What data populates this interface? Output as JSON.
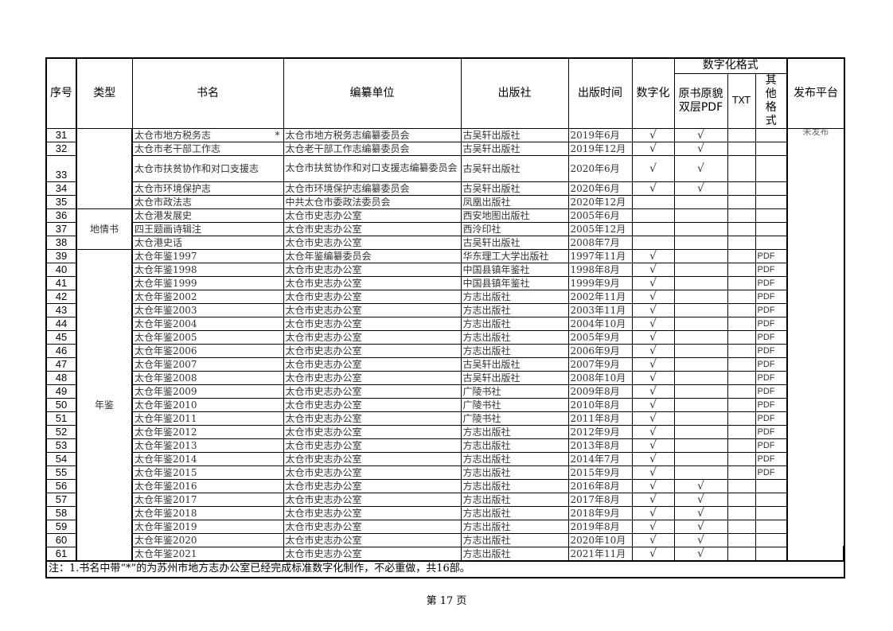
{
  "headers": {
    "no": "序号",
    "type": "类型",
    "title": "书名",
    "compiler": "编纂单位",
    "publisher": "出版社",
    "date": "出版时间",
    "digitized": "数字化",
    "format_group": "数字化格式",
    "format_pdf": "原书原貌双层PDF",
    "format_txt": "TXT",
    "format_other": "其他格式",
    "platform": "发布平台"
  },
  "platform_value": "未发布",
  "check_mark": "√",
  "type_groups": [
    {
      "label": "",
      "rows": 5
    },
    {
      "label": "地情书",
      "rows": 3
    },
    {
      "label": "年鉴",
      "rows": 23
    }
  ],
  "rows": [
    {
      "no": "31",
      "title": "太仓市地方税务志",
      "star": "*",
      "compiler": "太仓市地方税务志编纂委员会",
      "publisher": "古吴轩出版社",
      "date": "2019年6月",
      "digitized": "√",
      "pdf": "√",
      "txt": "",
      "other": ""
    },
    {
      "no": "32",
      "title": "太仓市老干部工作志",
      "star": "",
      "compiler": "太仓老干部工作志编纂委员会",
      "publisher": "古吴轩出版社",
      "date": "2019年12月",
      "digitized": "√",
      "pdf": "√",
      "txt": "",
      "other": ""
    },
    {
      "no": "33",
      "title": "太仓市扶贫协作和对口支援志",
      "star": "",
      "compiler": "太仓市扶贫协作和对口支援志编纂委员会",
      "publisher": "古吴轩出版社",
      "date": "2020年6月",
      "digitized": "√",
      "pdf": "√",
      "txt": "",
      "other": ""
    },
    {
      "no": "34",
      "title": "太仓市环境保护志",
      "star": "",
      "compiler": "太仓市环境保护志编纂委员会",
      "publisher": "古吴轩出版社",
      "date": "2020年6月",
      "digitized": "√",
      "pdf": "√",
      "txt": "",
      "other": ""
    },
    {
      "no": "35",
      "title": "太仓市政法志",
      "star": "",
      "compiler": "中共太仓市委政法委员会",
      "publisher": "凤凰出版社",
      "date": "2020年12月",
      "digitized": "",
      "pdf": "",
      "txt": "",
      "other": ""
    },
    {
      "no": "36",
      "title": "太仓港发展史",
      "star": "",
      "compiler": "太仓市史志办公室",
      "publisher": "西安地图出版社",
      "date": "2005年6月",
      "digitized": "",
      "pdf": "",
      "txt": "",
      "other": ""
    },
    {
      "no": "37",
      "title": "四王题画诗辑注",
      "star": "",
      "compiler": "太仓市史志办公室",
      "publisher": "西泠印社",
      "date": "2005年12月",
      "digitized": "",
      "pdf": "",
      "txt": "",
      "other": ""
    },
    {
      "no": "38",
      "title": "太仓港史话",
      "star": "",
      "compiler": "太仓市史志办公室",
      "publisher": "古吴轩出版社",
      "date": "2008年7月",
      "digitized": "",
      "pdf": "",
      "txt": "",
      "other": ""
    },
    {
      "no": "39",
      "title": "太仓年鉴1997",
      "star": "",
      "compiler": "太仓年鉴编纂委员会",
      "publisher": "华东理工大学出版社",
      "date": "1997年11月",
      "digitized": "√",
      "pdf": "",
      "txt": "",
      "other": "PDF"
    },
    {
      "no": "40",
      "title": "太仓年鉴1998",
      "star": "",
      "compiler": "太仓市史志办公室",
      "publisher": "中国县镇年鉴社",
      "date": "1998年8月",
      "digitized": "√",
      "pdf": "",
      "txt": "",
      "other": "PDF"
    },
    {
      "no": "41",
      "title": "太仓年鉴1999",
      "star": "",
      "compiler": "太仓市史志办公室",
      "publisher": "中国县镇年鉴社",
      "date": "1999年9月",
      "digitized": "√",
      "pdf": "",
      "txt": "",
      "other": "PDF"
    },
    {
      "no": "42",
      "title": "太仓年鉴2002",
      "star": "",
      "compiler": "太仓市史志办公室",
      "publisher": "方志出版社",
      "date": "2002年11月",
      "digitized": "√",
      "pdf": "",
      "txt": "",
      "other": "PDF"
    },
    {
      "no": "43",
      "title": "太仓年鉴2003",
      "star": "",
      "compiler": "太仓市史志办公室",
      "publisher": "方志出版社",
      "date": "2003年11月",
      "digitized": "√",
      "pdf": "",
      "txt": "",
      "other": "PDF"
    },
    {
      "no": "44",
      "title": "太仓年鉴2004",
      "star": "",
      "compiler": "太仓市史志办公室",
      "publisher": "方志出版社",
      "date": "2004年10月",
      "digitized": "√",
      "pdf": "",
      "txt": "",
      "other": "PDF"
    },
    {
      "no": "45",
      "title": "太仓年鉴2005",
      "star": "",
      "compiler": "太仓市史志办公室",
      "publisher": "方志出版社",
      "date": "2005年9月",
      "digitized": "√",
      "pdf": "",
      "txt": "",
      "other": "PDF"
    },
    {
      "no": "46",
      "title": "太仓年鉴2006",
      "star": "",
      "compiler": "太仓市史志办公室",
      "publisher": "方志出版社",
      "date": "2006年9月",
      "digitized": "√",
      "pdf": "",
      "txt": "",
      "other": "PDF"
    },
    {
      "no": "47",
      "title": "太仓年鉴2007",
      "star": "",
      "compiler": "太仓市史志办公室",
      "publisher": "古吴轩出版社",
      "date": "2007年9月",
      "digitized": "√",
      "pdf": "",
      "txt": "",
      "other": "PDF"
    },
    {
      "no": "48",
      "title": "太仓年鉴2008",
      "star": "",
      "compiler": "太仓市史志办公室",
      "publisher": "古吴轩出版社",
      "date": "2008年10月",
      "digitized": "√",
      "pdf": "",
      "txt": "",
      "other": "PDF"
    },
    {
      "no": "49",
      "title": "太仓年鉴2009",
      "star": "",
      "compiler": "太仓市史志办公室",
      "publisher": "广陵书社",
      "date": "2009年8月",
      "digitized": "√",
      "pdf": "",
      "txt": "",
      "other": "PDF"
    },
    {
      "no": "50",
      "title": "太仓年鉴2010",
      "star": "",
      "compiler": "太仓市史志办公室",
      "publisher": "广陵书社",
      "date": "2010年8月",
      "digitized": "√",
      "pdf": "",
      "txt": "",
      "other": "PDF"
    },
    {
      "no": "51",
      "title": "太仓年鉴2011",
      "star": "",
      "compiler": "太仓市史志办公室",
      "publisher": "广陵书社",
      "date": "2011年8月",
      "digitized": "√",
      "pdf": "",
      "txt": "",
      "other": "PDF"
    },
    {
      "no": "52",
      "title": "太仓年鉴2012",
      "star": "",
      "compiler": "太仓市史志办公室",
      "publisher": "方志出版社",
      "date": "2012年9月",
      "digitized": "√",
      "pdf": "",
      "txt": "",
      "other": "PDF"
    },
    {
      "no": "53",
      "title": "太仓年鉴2013",
      "star": "",
      "compiler": "太仓市史志办公室",
      "publisher": "方志出版社",
      "date": "2013年8月",
      "digitized": "√",
      "pdf": "",
      "txt": "",
      "other": "PDF"
    },
    {
      "no": "54",
      "title": "太仓年鉴2014",
      "star": "",
      "compiler": "太仓市史志办公室",
      "publisher": "方志出版社",
      "date": "2014年7月",
      "digitized": "√",
      "pdf": "",
      "txt": "",
      "other": "PDF"
    },
    {
      "no": "55",
      "title": "太仓年鉴2015",
      "star": "",
      "compiler": "太仓市史志办公室",
      "publisher": "方志出版社",
      "date": "2015年9月",
      "digitized": "√",
      "pdf": "",
      "txt": "",
      "other": "PDF"
    },
    {
      "no": "56",
      "title": "太仓年鉴2016",
      "star": "",
      "compiler": "太仓市史志办公室",
      "publisher": "方志出版社",
      "date": "2016年8月",
      "digitized": "√",
      "pdf": "√",
      "txt": "",
      "other": ""
    },
    {
      "no": "57",
      "title": "太仓年鉴2017",
      "star": "",
      "compiler": "太仓市史志办公室",
      "publisher": "方志出版社",
      "date": "2017年8月",
      "digitized": "√",
      "pdf": "√",
      "txt": "",
      "other": ""
    },
    {
      "no": "58",
      "title": "太仓年鉴2018",
      "star": "",
      "compiler": "太仓市史志办公室",
      "publisher": "方志出版社",
      "date": "2018年9月",
      "digitized": "√",
      "pdf": "√",
      "txt": "",
      "other": ""
    },
    {
      "no": "59",
      "title": "太仓年鉴2019",
      "star": "",
      "compiler": "太仓市史志办公室",
      "publisher": "方志出版社",
      "date": "2019年8月",
      "digitized": "√",
      "pdf": "√",
      "txt": "",
      "other": ""
    },
    {
      "no": "60",
      "title": "太仓年鉴2020",
      "star": "",
      "compiler": "太仓市史志办公室",
      "publisher": "方志出版社",
      "date": "2020年10月",
      "digitized": "√",
      "pdf": "√",
      "txt": "",
      "other": ""
    },
    {
      "no": "61",
      "title": "太仓年鉴2021",
      "star": "",
      "compiler": "太仓市史志办公室",
      "publisher": "方志出版社",
      "date": "2021年11月",
      "digitized": "√",
      "pdf": "√",
      "txt": "",
      "other": ""
    }
  ],
  "note": "注：1.书名中带“*”的为苏州市地方志办公室已经完成标准数字化制作，不必重做，共16部。",
  "page_number": "第 17 页"
}
